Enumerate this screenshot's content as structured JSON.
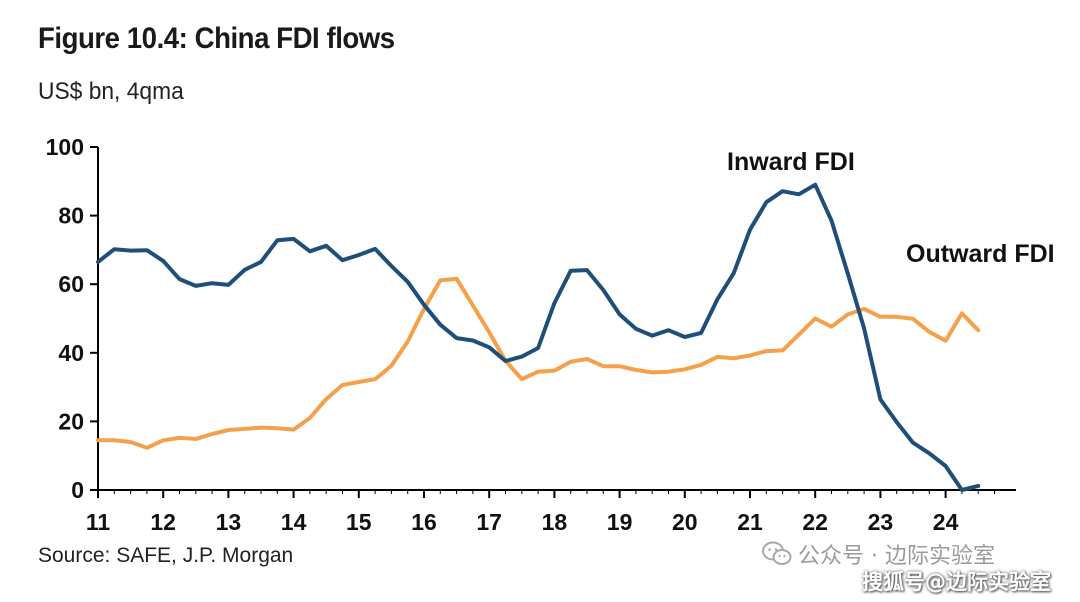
{
  "header": {
    "title": "Figure 10.4: China FDI flows",
    "subtitle": "US$ bn, 4qma"
  },
  "footer": {
    "source": "Source: SAFE, J.P. Morgan",
    "watermark_wechat": "公众号 · 边际实验室",
    "watermark_sohu": "搜狐号@边际实验室"
  },
  "colors": {
    "inward": "#1f4e79",
    "outward": "#f5a04a",
    "axis": "#000000"
  },
  "chart_data": {
    "type": "line",
    "title": "Figure 10.4: China FDI flows",
    "subtitle": "US$ bn, 4qma",
    "ylim": [
      0,
      100
    ],
    "yticks": [
      0,
      20,
      40,
      60,
      80,
      100
    ],
    "xlim": [
      2011,
      2025
    ],
    "xticks": [
      {
        "value": 2011,
        "label": "11"
      },
      {
        "value": 2012,
        "label": "12"
      },
      {
        "value": 2013,
        "label": "13"
      },
      {
        "value": 2014,
        "label": "14"
      },
      {
        "value": 2015,
        "label": "15"
      },
      {
        "value": 2016,
        "label": "16"
      },
      {
        "value": 2017,
        "label": "17"
      },
      {
        "value": 2018,
        "label": "18"
      },
      {
        "value": 2019,
        "label": "19"
      },
      {
        "value": 2020,
        "label": "20"
      },
      {
        "value": 2021,
        "label": "21"
      },
      {
        "value": 2022,
        "label": "22"
      },
      {
        "value": 2023,
        "label": "23"
      },
      {
        "value": 2024,
        "label": "24"
      }
    ],
    "grid": false,
    "series": [
      {
        "name": "Inward FDI",
        "color": "#1f4e79",
        "x": [
          2011.0,
          2011.25,
          2011.5,
          2011.75,
          2012.0,
          2012.25,
          2012.5,
          2012.75,
          2013.0,
          2013.25,
          2013.5,
          2013.75,
          2014.0,
          2014.25,
          2014.5,
          2014.75,
          2015.0,
          2015.25,
          2015.5,
          2015.75,
          2016.0,
          2016.25,
          2016.5,
          2016.75,
          2017.0,
          2017.25,
          2017.5,
          2017.75,
          2018.0,
          2018.25,
          2018.5,
          2018.75,
          2019.0,
          2019.25,
          2019.5,
          2019.75,
          2020.0,
          2020.25,
          2020.5,
          2020.75,
          2021.0,
          2021.25,
          2021.5,
          2021.75,
          2022.0,
          2022.25,
          2022.5,
          2022.75,
          2023.0,
          2023.25,
          2023.5,
          2023.75,
          2024.0,
          2024.25,
          2024.5
        ],
        "values": [
          66.5,
          70.2,
          69.8,
          69.9,
          66.8,
          61.5,
          59.5,
          60.3,
          59.8,
          64.2,
          66.5,
          72.8,
          73.2,
          69.6,
          71.2,
          67.0,
          68.5,
          70.3,
          65.3,
          60.7,
          54.0,
          48.2,
          44.3,
          43.6,
          41.6,
          37.6,
          38.9,
          41.4,
          54.5,
          63.9,
          64.1,
          58.3,
          51.2,
          47.0,
          45.0,
          46.6,
          44.6,
          45.8,
          55.6,
          63.2,
          75.9,
          83.9,
          87.1,
          86.2,
          89.0,
          78.5,
          63.1,
          47.1,
          26.4,
          19.8,
          13.8,
          10.7,
          7.0,
          0.0,
          1.2
        ]
      },
      {
        "name": "Outward FDI",
        "color": "#f5a04a",
        "x": [
          2011.0,
          2011.25,
          2011.5,
          2011.75,
          2012.0,
          2012.25,
          2012.5,
          2012.75,
          2013.0,
          2013.25,
          2013.5,
          2013.75,
          2014.0,
          2014.25,
          2014.5,
          2014.75,
          2015.0,
          2015.25,
          2015.5,
          2015.75,
          2016.0,
          2016.25,
          2016.5,
          2016.75,
          2017.0,
          2017.25,
          2017.5,
          2017.75,
          2018.0,
          2018.25,
          2018.5,
          2018.75,
          2019.0,
          2019.25,
          2019.5,
          2019.75,
          2020.0,
          2020.25,
          2020.5,
          2020.75,
          2021.0,
          2021.25,
          2021.5,
          2021.75,
          2022.0,
          2022.25,
          2022.5,
          2022.75,
          2023.0,
          2023.25,
          2023.5,
          2023.75,
          2024.0,
          2024.25,
          2024.5
        ],
        "values": [
          14.5,
          14.5,
          14.0,
          12.3,
          14.5,
          15.2,
          14.9,
          16.3,
          17.5,
          17.8,
          18.2,
          18.0,
          17.6,
          21.0,
          26.5,
          30.6,
          31.5,
          32.3,
          36.2,
          43.3,
          52.8,
          61.1,
          61.6,
          53.8,
          46.0,
          37.7,
          32.3,
          34.5,
          34.8,
          37.4,
          38.2,
          36.1,
          36.1,
          35.0,
          34.3,
          34.5,
          35.2,
          36.5,
          38.8,
          38.4,
          39.2,
          40.5,
          40.7,
          45.3,
          50.0,
          47.6,
          51.2,
          52.8,
          50.5,
          50.5,
          49.9,
          46.1,
          43.5,
          51.5,
          46.6
        ]
      }
    ],
    "annotations": [
      {
        "text": "Inward FDI",
        "series": "Inward FDI"
      },
      {
        "text": "Outward FDI",
        "series": "Outward FDI"
      }
    ]
  }
}
